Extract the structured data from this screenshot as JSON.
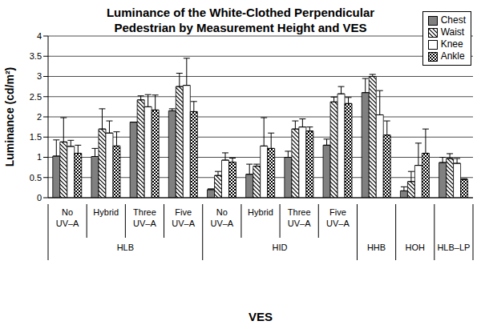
{
  "chart_data": {
    "type": "bar",
    "title": "Luminance of the White-Clothed Perpendicular Pedestrian by Measurement Height and VES",
    "x_label": "VES",
    "y_label": "Luminance (cd/m²)",
    "categories": [
      "No UV–A",
      "Hybrid",
      "Three UV–A",
      "Five UV–A",
      "No UV–A",
      "Hybrid",
      "Three UV–A",
      "Five UV–A",
      null,
      null,
      null
    ],
    "groups": [
      "HLB",
      "HLB",
      "HLB",
      "HLB",
      "HID",
      "HID",
      "HID",
      "HID",
      "HHB",
      "HOH",
      "HLB–LP"
    ],
    "series": [
      {
        "name": "Chest",
        "color": "#808080",
        "values": [
          1.03,
          1.02,
          1.87,
          2.15,
          0.2,
          0.58,
          1.0,
          1.3,
          2.6,
          0.17,
          0.87
        ],
        "errors": [
          0.4,
          0.2,
          0.0,
          0.05,
          0.02,
          0.25,
          0.15,
          0.15,
          0.35,
          0.1,
          0.13
        ]
      },
      {
        "name": "Waist",
        "color": "#000000",
        "values": [
          1.38,
          1.7,
          2.42,
          2.75,
          0.55,
          0.78,
          1.7,
          2.37,
          3.0,
          0.4,
          0.97
        ],
        "errors": [
          0.6,
          0.5,
          0.1,
          0.33,
          0.1,
          0.05,
          0.2,
          0.12,
          0.05,
          0.25,
          0.12
        ]
      },
      {
        "name": "Knee",
        "color": "#ffffff",
        "values": [
          1.27,
          1.6,
          2.25,
          2.78,
          0.93,
          1.28,
          1.75,
          2.57,
          2.05,
          0.8,
          0.85
        ],
        "errors": [
          0.15,
          0.3,
          0.3,
          0.67,
          0.18,
          0.7,
          0.2,
          0.18,
          0.6,
          0.55,
          0.12
        ]
      },
      {
        "name": "Ankle",
        "color": "#000000",
        "values": [
          1.1,
          1.28,
          2.17,
          2.13,
          0.88,
          1.22,
          1.65,
          2.33,
          1.55,
          1.1,
          0.45
        ],
        "errors": [
          0.2,
          0.35,
          0.37,
          0.25,
          0.1,
          0.38,
          0.1,
          0.15,
          0.35,
          0.6,
          0.02
        ]
      }
    ],
    "ylim": [
      0,
      4
    ],
    "yticks": [
      0,
      0.5,
      1,
      1.5,
      2,
      2.5,
      3,
      3.5,
      4
    ],
    "grid": true,
    "legend": "upper right"
  }
}
